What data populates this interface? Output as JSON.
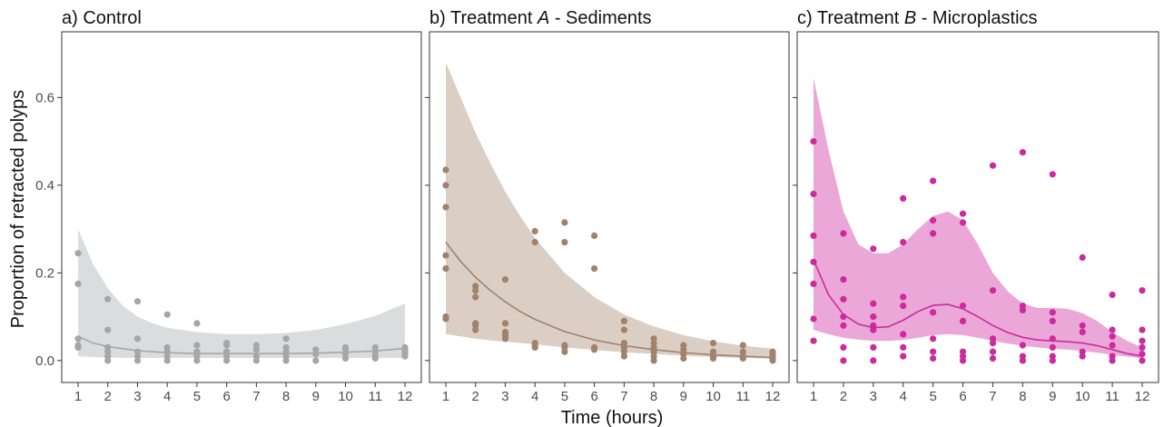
{
  "chart_data": {
    "type": "scatter",
    "xlabel": "Time (hours)",
    "ylabel": "Proportion of retracted polyps",
    "xlim": [
      0.5,
      12.5
    ],
    "ylim": [
      -0.05,
      0.75
    ],
    "x_ticks": [
      1,
      2,
      3,
      4,
      5,
      6,
      7,
      8,
      9,
      10,
      11,
      12
    ],
    "y_ticks": [
      0.0,
      0.2,
      0.4,
      0.6
    ],
    "y_tick_labels": [
      "0.0",
      "0.2",
      "0.4",
      "0.6"
    ],
    "grid": false,
    "panels": [
      {
        "title_prefix": "a) Control",
        "title_emph": "",
        "title_suffix": "",
        "color": "#a6a6a6",
        "band_color": "#d9dadc",
        "points": [
          [
            1,
            0.245
          ],
          [
            1,
            0.175
          ],
          [
            1,
            0.05
          ],
          [
            1,
            0.035
          ],
          [
            1,
            0.03
          ],
          [
            2,
            0.14
          ],
          [
            2,
            0.07
          ],
          [
            2,
            0.03
          ],
          [
            2,
            0.02
          ],
          [
            2,
            0.01
          ],
          [
            2,
            0.0
          ],
          [
            3,
            0.135
          ],
          [
            3,
            0.05
          ],
          [
            3,
            0.02
          ],
          [
            3,
            0.01
          ],
          [
            3,
            0.0
          ],
          [
            4,
            0.105
          ],
          [
            4,
            0.03
          ],
          [
            4,
            0.02
          ],
          [
            4,
            0.01
          ],
          [
            4,
            0.0
          ],
          [
            5,
            0.085
          ],
          [
            5,
            0.035
          ],
          [
            5,
            0.02
          ],
          [
            5,
            0.01
          ],
          [
            5,
            0.0
          ],
          [
            6,
            0.04
          ],
          [
            6,
            0.035
          ],
          [
            6,
            0.02
          ],
          [
            6,
            0.01
          ],
          [
            6,
            0.0
          ],
          [
            7,
            0.035
          ],
          [
            7,
            0.025
          ],
          [
            7,
            0.01
          ],
          [
            7,
            0.0
          ],
          [
            8,
            0.05
          ],
          [
            8,
            0.03
          ],
          [
            8,
            0.02
          ],
          [
            8,
            0.01
          ],
          [
            8,
            0.0
          ],
          [
            9,
            0.025
          ],
          [
            9,
            0.015
          ],
          [
            9,
            0.0
          ],
          [
            10,
            0.03
          ],
          [
            10,
            0.025
          ],
          [
            10,
            0.015
          ],
          [
            10,
            0.005
          ],
          [
            11,
            0.03
          ],
          [
            11,
            0.02
          ],
          [
            11,
            0.01
          ],
          [
            11,
            0.005
          ],
          [
            12,
            0.03
          ],
          [
            12,
            0.025
          ],
          [
            12,
            0.02
          ],
          [
            12,
            0.015
          ],
          [
            12,
            0.01
          ]
        ],
        "fit_x": [
          1,
          1.5,
          2,
          2.5,
          3,
          3.5,
          4,
          5,
          6,
          7,
          8,
          9,
          10,
          11,
          12
        ],
        "fit_y": [
          0.055,
          0.04,
          0.032,
          0.027,
          0.023,
          0.02,
          0.018,
          0.016,
          0.016,
          0.016,
          0.016,
          0.017,
          0.019,
          0.022,
          0.028
        ],
        "band_lower": [
          0.01,
          0.008,
          0.007,
          0.006,
          0.006,
          0.006,
          0.006,
          0.006,
          0.006,
          0.006,
          0.006,
          0.006,
          0.006,
          0.006,
          0.006
        ],
        "band_upper": [
          0.3,
          0.22,
          0.165,
          0.125,
          0.1,
          0.085,
          0.075,
          0.065,
          0.06,
          0.06,
          0.063,
          0.07,
          0.083,
          0.102,
          0.13
        ]
      },
      {
        "title_prefix": "b) Treatment ",
        "title_emph": "A",
        "title_suffix": " - Sediments",
        "color": "#a0826d",
        "band_color": "#d9ccc2",
        "points": [
          [
            1,
            0.435
          ],
          [
            1,
            0.4
          ],
          [
            1,
            0.35
          ],
          [
            1,
            0.24
          ],
          [
            1,
            0.21
          ],
          [
            1,
            0.1
          ],
          [
            1,
            0.095
          ],
          [
            2,
            0.17
          ],
          [
            2,
            0.16
          ],
          [
            2,
            0.145
          ],
          [
            2,
            0.085
          ],
          [
            2,
            0.08
          ],
          [
            2,
            0.07
          ],
          [
            3,
            0.185
          ],
          [
            3,
            0.085
          ],
          [
            3,
            0.065
          ],
          [
            3,
            0.06
          ],
          [
            3,
            0.055
          ],
          [
            3,
            0.05
          ],
          [
            4,
            0.295
          ],
          [
            4,
            0.27
          ],
          [
            4,
            0.04
          ],
          [
            4,
            0.035
          ],
          [
            4,
            0.03
          ],
          [
            5,
            0.315
          ],
          [
            5,
            0.27
          ],
          [
            5,
            0.035
          ],
          [
            5,
            0.03
          ],
          [
            5,
            0.02
          ],
          [
            6,
            0.285
          ],
          [
            6,
            0.21
          ],
          [
            6,
            0.03
          ],
          [
            6,
            0.025
          ],
          [
            7,
            0.09
          ],
          [
            7,
            0.07
          ],
          [
            7,
            0.04
          ],
          [
            7,
            0.03
          ],
          [
            7,
            0.02
          ],
          [
            7,
            0.01
          ],
          [
            8,
            0.05
          ],
          [
            8,
            0.04
          ],
          [
            8,
            0.03
          ],
          [
            8,
            0.02
          ],
          [
            8,
            0.01
          ],
          [
            8,
            0.0
          ],
          [
            9,
            0.035
          ],
          [
            9,
            0.025
          ],
          [
            9,
            0.015
          ],
          [
            9,
            0.005
          ],
          [
            10,
            0.04
          ],
          [
            10,
            0.02
          ],
          [
            10,
            0.01
          ],
          [
            10,
            0.005
          ],
          [
            11,
            0.035
          ],
          [
            11,
            0.02
          ],
          [
            11,
            0.01
          ],
          [
            11,
            0.005
          ],
          [
            12,
            0.02
          ],
          [
            12,
            0.015
          ],
          [
            12,
            0.01
          ],
          [
            12,
            0.005
          ],
          [
            12,
            0.0
          ]
        ],
        "fit_x": [
          1,
          1.5,
          2,
          2.5,
          3,
          3.5,
          4,
          5,
          6,
          7,
          8,
          9,
          10,
          11,
          12
        ],
        "fit_y": [
          0.27,
          0.226,
          0.19,
          0.16,
          0.134,
          0.112,
          0.094,
          0.066,
          0.047,
          0.034,
          0.025,
          0.018,
          0.013,
          0.01,
          0.007
        ],
        "band_lower": [
          0.06,
          0.055,
          0.05,
          0.046,
          0.043,
          0.04,
          0.037,
          0.03,
          0.024,
          0.019,
          0.015,
          0.011,
          0.008,
          0.006,
          0.004
        ],
        "band_upper": [
          0.68,
          0.6,
          0.52,
          0.45,
          0.385,
          0.33,
          0.28,
          0.2,
          0.145,
          0.105,
          0.078,
          0.058,
          0.044,
          0.034,
          0.027
        ]
      },
      {
        "title_prefix": "c) Treatment ",
        "title_emph": "B",
        "title_suffix": " - Microplastics",
        "color": "#cc2b9e",
        "band_color": "#e9a2d5",
        "points": [
          [
            1,
            0.5
          ],
          [
            1,
            0.38
          ],
          [
            1,
            0.285
          ],
          [
            1,
            0.225
          ],
          [
            1,
            0.175
          ],
          [
            1,
            0.095
          ],
          [
            1,
            0.045
          ],
          [
            2,
            0.29
          ],
          [
            2,
            0.185
          ],
          [
            2,
            0.14
          ],
          [
            2,
            0.1
          ],
          [
            2,
            0.08
          ],
          [
            2,
            0.03
          ],
          [
            2,
            0.0
          ],
          [
            3,
            0.255
          ],
          [
            3,
            0.13
          ],
          [
            3,
            0.1
          ],
          [
            3,
            0.08
          ],
          [
            3,
            0.07
          ],
          [
            3,
            0.03
          ],
          [
            3,
            0.0
          ],
          [
            4,
            0.37
          ],
          [
            4,
            0.27
          ],
          [
            4,
            0.145
          ],
          [
            4,
            0.125
          ],
          [
            4,
            0.06
          ],
          [
            4,
            0.03
          ],
          [
            4,
            0.01
          ],
          [
            5,
            0.41
          ],
          [
            5,
            0.32
          ],
          [
            5,
            0.29
          ],
          [
            5,
            0.11
          ],
          [
            5,
            0.05
          ],
          [
            5,
            0.02
          ],
          [
            5,
            0.005
          ],
          [
            6,
            0.335
          ],
          [
            6,
            0.315
          ],
          [
            6,
            0.125
          ],
          [
            6,
            0.09
          ],
          [
            6,
            0.02
          ],
          [
            6,
            0.01
          ],
          [
            6,
            0.0
          ],
          [
            7,
            0.445
          ],
          [
            7,
            0.16
          ],
          [
            7,
            0.05
          ],
          [
            7,
            0.04
          ],
          [
            7,
            0.02
          ],
          [
            7,
            0.005
          ],
          [
            8,
            0.475
          ],
          [
            8,
            0.125
          ],
          [
            8,
            0.115
          ],
          [
            8,
            0.035
          ],
          [
            8,
            0.01
          ],
          [
            8,
            0.0
          ],
          [
            9,
            0.425
          ],
          [
            9,
            0.11
          ],
          [
            9,
            0.09
          ],
          [
            9,
            0.05
          ],
          [
            9,
            0.03
          ],
          [
            9,
            0.01
          ],
          [
            9,
            0.0
          ],
          [
            10,
            0.235
          ],
          [
            10,
            0.08
          ],
          [
            10,
            0.065
          ],
          [
            10,
            0.02
          ],
          [
            10,
            0.01
          ],
          [
            11,
            0.15
          ],
          [
            11,
            0.07
          ],
          [
            11,
            0.055
          ],
          [
            11,
            0.035
          ],
          [
            11,
            0.01
          ],
          [
            11,
            0.0
          ],
          [
            12,
            0.16
          ],
          [
            12,
            0.07
          ],
          [
            12,
            0.045
          ],
          [
            12,
            0.03
          ],
          [
            12,
            0.015
          ],
          [
            12,
            0.0
          ]
        ],
        "fit_x": [
          1,
          1.5,
          2,
          2.5,
          3,
          3.5,
          4,
          4.5,
          5,
          5.5,
          6,
          6.5,
          7,
          7.5,
          8,
          8.5,
          9,
          9.5,
          10,
          10.5,
          11,
          11.5,
          12
        ],
        "fit_y": [
          0.23,
          0.15,
          0.105,
          0.083,
          0.075,
          0.077,
          0.092,
          0.112,
          0.126,
          0.128,
          0.118,
          0.1,
          0.08,
          0.064,
          0.053,
          0.047,
          0.045,
          0.043,
          0.04,
          0.034,
          0.025,
          0.016,
          0.01
        ],
        "band_lower": [
          0.07,
          0.06,
          0.052,
          0.048,
          0.045,
          0.045,
          0.047,
          0.052,
          0.058,
          0.06,
          0.058,
          0.052,
          0.045,
          0.039,
          0.034,
          0.03,
          0.027,
          0.025,
          0.022,
          0.018,
          0.013,
          0.009,
          0.005
        ],
        "band_upper": [
          0.645,
          0.48,
          0.34,
          0.265,
          0.245,
          0.245,
          0.265,
          0.3,
          0.33,
          0.34,
          0.32,
          0.265,
          0.2,
          0.158,
          0.13,
          0.12,
          0.12,
          0.118,
          0.108,
          0.09,
          0.065,
          0.045,
          0.03
        ]
      }
    ]
  }
}
